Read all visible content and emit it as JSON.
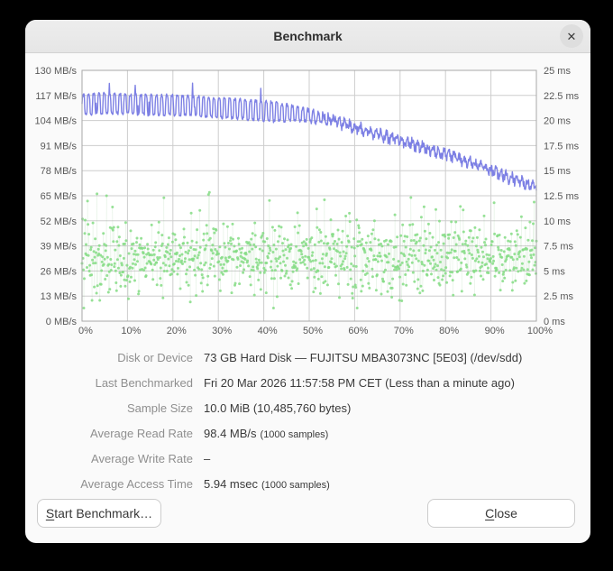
{
  "window": {
    "title": "Benchmark",
    "close_icon": "✕"
  },
  "chart_data": {
    "type": "line",
    "title": "",
    "grid": true,
    "legend": "none",
    "left_axis": {
      "unit": "MB/s",
      "min": 0,
      "max": 130,
      "step": 13,
      "labels": [
        "130 MB/s",
        "117 MB/s",
        "104 MB/s",
        "91 MB/s",
        "78 MB/s",
        "65 MB/s",
        "52 MB/s",
        "39 MB/s",
        "26 MB/s",
        "13 MB/s",
        "0 MB/s"
      ]
    },
    "right_axis": {
      "unit": "ms",
      "min": 0,
      "max": 25,
      "step": 2.5,
      "labels": [
        "25 ms",
        "22.5 ms",
        "20 ms",
        "17.5 ms",
        "15 ms",
        "12.5 ms",
        "10 ms",
        "7.5 ms",
        "5 ms",
        "2.5 ms",
        "0 ms"
      ]
    },
    "x_axis": {
      "min": 0,
      "max": 100,
      "labels": [
        "0%",
        "10%",
        "20%",
        "30%",
        "40%",
        "50%",
        "60%",
        "70%",
        "80%",
        "90%",
        "100%"
      ]
    },
    "series": [
      {
        "name": "read-rate",
        "type": "line",
        "axis": "left",
        "unit": "MB/s",
        "color": "#7d80e4",
        "samples": 1000,
        "average": "98.4 MB/s",
        "anchors_pct": [
          0,
          5,
          10,
          15,
          20,
          25,
          30,
          35,
          40,
          45,
          50,
          55,
          60,
          65,
          70,
          75,
          80,
          85,
          90,
          95,
          100
        ],
        "anchors_mbs": [
          112,
          113,
          112.5,
          112,
          112,
          111.5,
          110.5,
          110,
          109,
          108,
          106.5,
          104,
          100.5,
          97,
          93.5,
          90,
          86.5,
          82.5,
          78,
          73.5,
          69.5
        ],
        "oscillation_peak_to_peak_mbs": 10,
        "oscillation_period_pct": 1.15
      },
      {
        "name": "access-time",
        "type": "scatter",
        "axis": "right",
        "unit": "ms",
        "dot_color": "#85dc85",
        "web_color": "rgba(130,195,130,0.16)",
        "samples": 1000,
        "average_ms": 5.94,
        "spread_ms": 1.65,
        "min_ms": 1.3,
        "max_ms": 12.9
      }
    ]
  },
  "details": {
    "rows": [
      {
        "label": "Disk or Device",
        "value": "73 GB Hard Disk — FUJITSU MBA3073NC [5E03] (/dev/sdd)",
        "small": ""
      },
      {
        "label": "Last Benchmarked",
        "value": "Fri 20 Mar 2026 11:57:58 PM CET (Less than a minute ago)",
        "small": ""
      },
      {
        "label": "Sample Size",
        "value": "10.0 MiB (10,485,760 bytes)",
        "small": ""
      },
      {
        "label": "Average Read Rate",
        "value": "98.4 MB/s",
        "small": "(1000 samples)"
      },
      {
        "label": "Average Write Rate",
        "value": "–",
        "small": ""
      },
      {
        "label": "Average Access Time",
        "value": "5.94 msec",
        "small": "(1000 samples)"
      }
    ]
  },
  "buttons": {
    "start": {
      "u": "S",
      "rest": "tart Benchmark…"
    },
    "close": {
      "u": "C",
      "rest": "lose"
    }
  }
}
